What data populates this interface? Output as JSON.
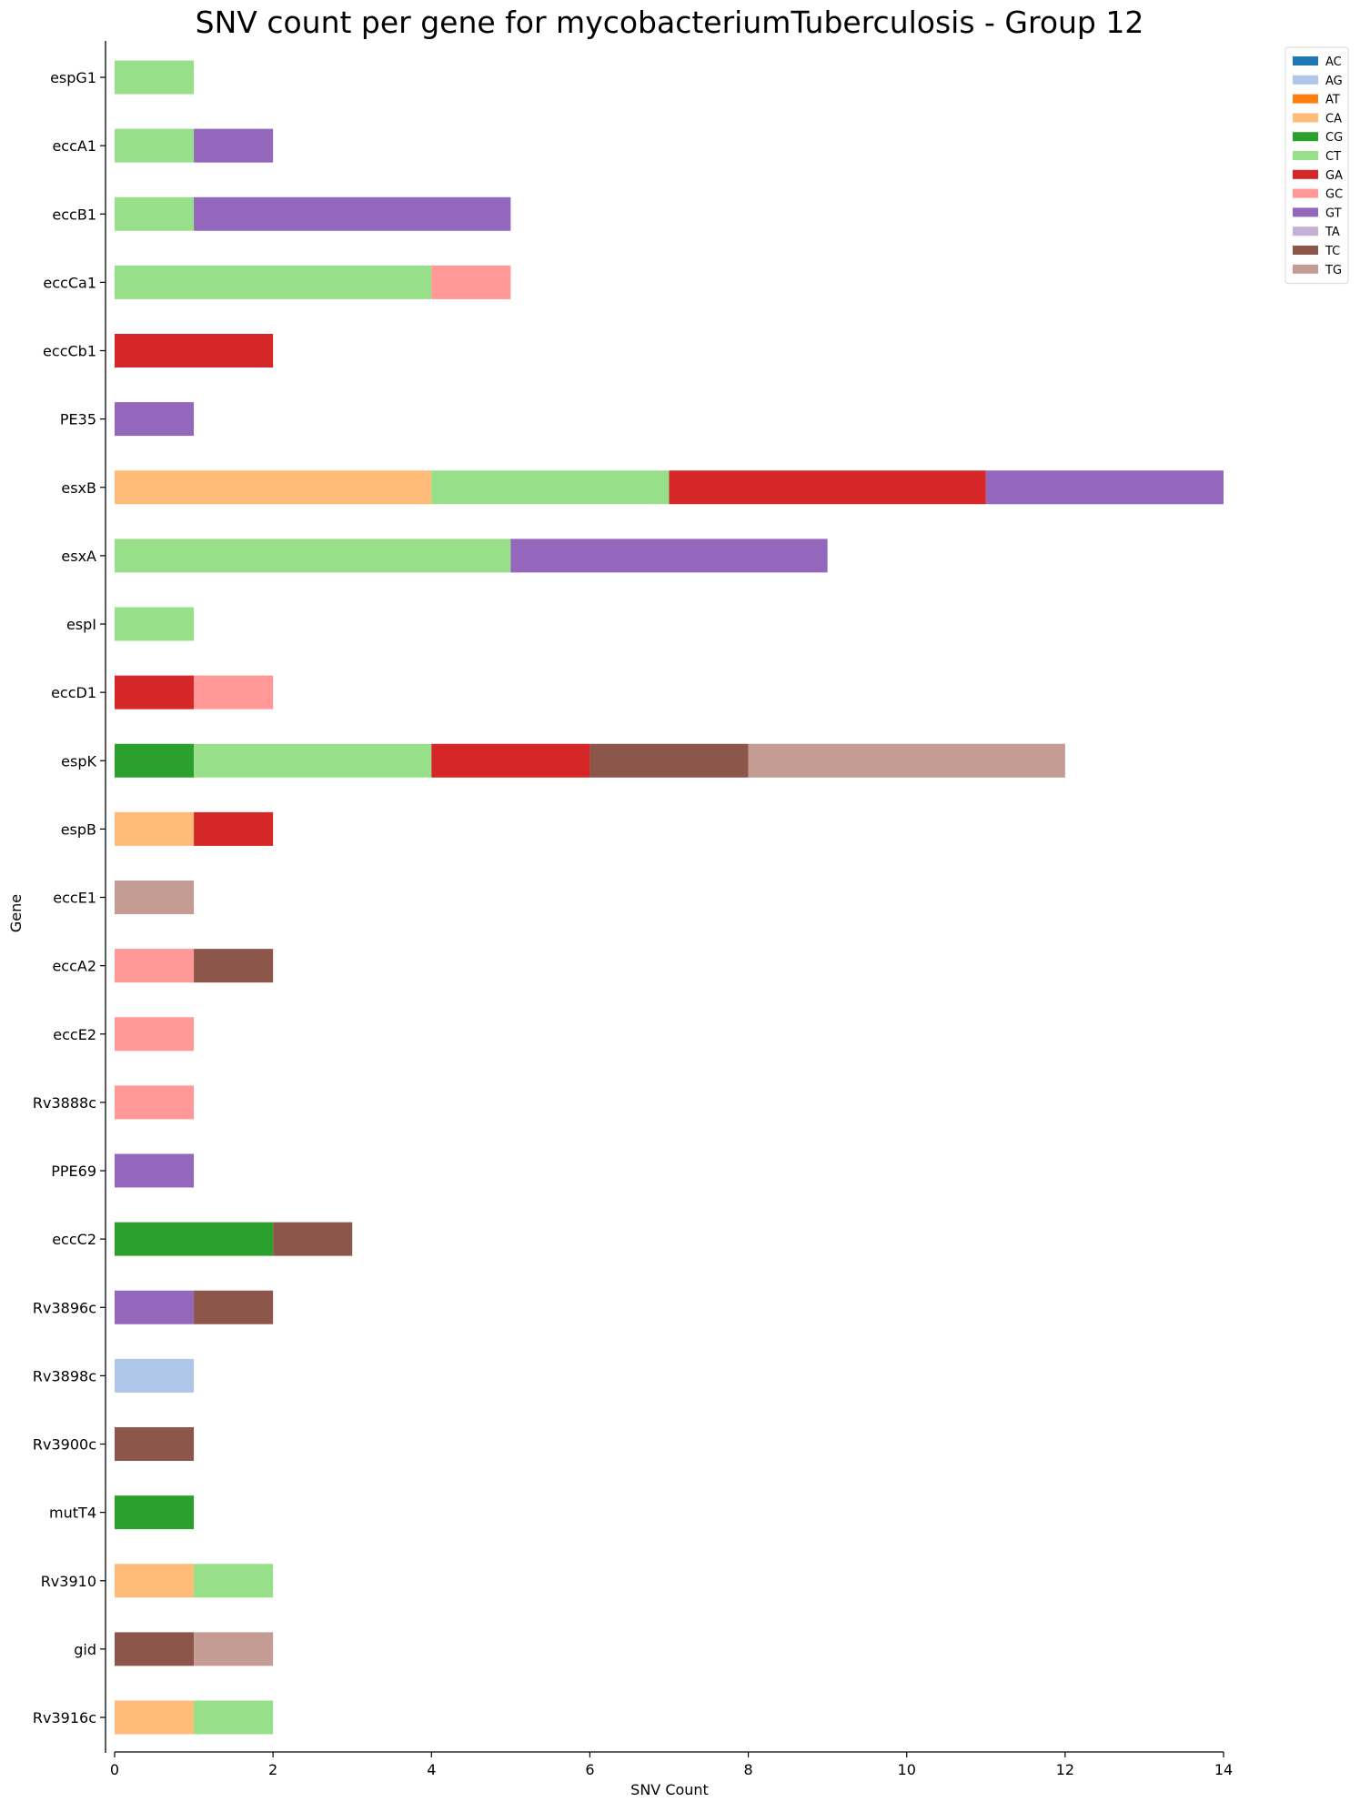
{
  "chart_data": {
    "type": "bar",
    "orientation": "horizontal",
    "stacked": true,
    "title": "SNV count per gene for mycobacteriumTuberculosis - Group 12",
    "xlabel": "SNV Count",
    "ylabel": "Gene",
    "xlim": [
      0,
      14
    ],
    "xticks": [
      0,
      2,
      4,
      6,
      8,
      10,
      12,
      14
    ],
    "grid": false,
    "legend_position": "top-right, outside plot",
    "categories": [
      "espG1",
      "eccA1",
      "eccB1",
      "eccCa1",
      "eccCb1",
      "PE35",
      "esxB",
      "esxA",
      "espI",
      "eccD1",
      "espK",
      "espB",
      "eccE1",
      "eccA2",
      "eccE2",
      "Rv3888c",
      "PPE69",
      "eccC2",
      "Rv3896c",
      "Rv3898c",
      "Rv3900c",
      "mutT4",
      "Rv3910",
      "gid",
      "Rv3916c"
    ],
    "series": [
      {
        "name": "AC",
        "color": "#1f77b4",
        "values": [
          0,
          0,
          0,
          0,
          0,
          0,
          0,
          0,
          0,
          0,
          0,
          0,
          0,
          0,
          0,
          0,
          0,
          0,
          0,
          0,
          0,
          0,
          0,
          0,
          0
        ]
      },
      {
        "name": "AG",
        "color": "#aec7e8",
        "values": [
          0,
          0,
          0,
          0,
          0,
          0,
          0,
          0,
          0,
          0,
          0,
          0,
          0,
          0,
          0,
          0,
          0,
          0,
          0,
          1,
          0,
          0,
          0,
          0,
          0
        ]
      },
      {
        "name": "AT",
        "color": "#ff7f0e",
        "values": [
          0,
          0,
          0,
          0,
          0,
          0,
          0,
          0,
          0,
          0,
          0,
          0,
          0,
          0,
          0,
          0,
          0,
          0,
          0,
          0,
          0,
          0,
          0,
          0,
          0
        ]
      },
      {
        "name": "CA",
        "color": "#ffbb78",
        "values": [
          0,
          0,
          0,
          0,
          0,
          0,
          4,
          0,
          0,
          0,
          0,
          1,
          0,
          0,
          0,
          0,
          0,
          0,
          0,
          0,
          0,
          0,
          1,
          0,
          1
        ]
      },
      {
        "name": "CG",
        "color": "#2ca02c",
        "values": [
          0,
          0,
          0,
          0,
          0,
          0,
          0,
          0,
          0,
          0,
          1,
          0,
          0,
          0,
          0,
          0,
          0,
          2,
          0,
          0,
          0,
          1,
          0,
          0,
          0
        ]
      },
      {
        "name": "CT",
        "color": "#98df8a",
        "values": [
          1,
          1,
          1,
          4,
          0,
          0,
          3,
          5,
          1,
          0,
          3,
          0,
          0,
          0,
          0,
          0,
          0,
          0,
          0,
          0,
          0,
          0,
          1,
          0,
          1
        ]
      },
      {
        "name": "GA",
        "color": "#d62728",
        "values": [
          0,
          0,
          0,
          0,
          2,
          0,
          4,
          0,
          0,
          1,
          2,
          1,
          0,
          0,
          0,
          0,
          0,
          0,
          0,
          0,
          0,
          0,
          0,
          0,
          0
        ]
      },
      {
        "name": "GC",
        "color": "#ff9896",
        "values": [
          0,
          0,
          0,
          1,
          0,
          0,
          0,
          0,
          0,
          1,
          0,
          0,
          0,
          1,
          1,
          1,
          0,
          0,
          0,
          0,
          0,
          0,
          0,
          0,
          0
        ]
      },
      {
        "name": "GT",
        "color": "#9467bd",
        "values": [
          0,
          1,
          4,
          0,
          0,
          1,
          3,
          4,
          0,
          0,
          0,
          0,
          0,
          0,
          0,
          0,
          1,
          0,
          1,
          0,
          0,
          0,
          0,
          0,
          0
        ]
      },
      {
        "name": "TA",
        "color": "#c5b0d5",
        "values": [
          0,
          0,
          0,
          0,
          0,
          0,
          0,
          0,
          0,
          0,
          0,
          0,
          0,
          0,
          0,
          0,
          0,
          0,
          0,
          0,
          0,
          0,
          0,
          0,
          0
        ]
      },
      {
        "name": "TC",
        "color": "#8c564b",
        "values": [
          0,
          0,
          0,
          0,
          0,
          0,
          0,
          0,
          0,
          0,
          2,
          0,
          0,
          1,
          0,
          0,
          0,
          1,
          1,
          0,
          1,
          0,
          0,
          1,
          0
        ]
      },
      {
        "name": "TG",
        "color": "#c49c94",
        "values": [
          0,
          0,
          0,
          0,
          0,
          0,
          0,
          0,
          0,
          0,
          4,
          0,
          1,
          0,
          0,
          0,
          0,
          0,
          0,
          0,
          0,
          0,
          0,
          1,
          0
        ]
      }
    ]
  }
}
